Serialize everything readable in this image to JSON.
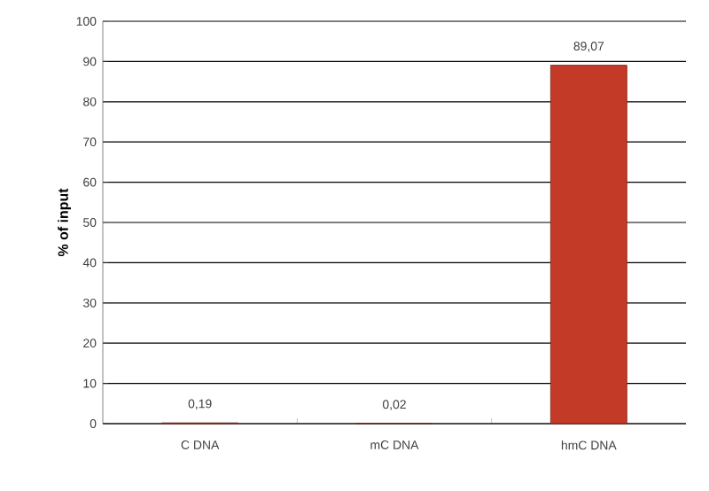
{
  "chart_data": {
    "type": "bar",
    "ylabel": "% of input",
    "categories": [
      "C DNA",
      "mC DNA",
      "hmC DNA"
    ],
    "values": [
      0.19,
      0.02,
      89.07
    ],
    "value_labels": [
      "0,19",
      "0,02",
      "89,07"
    ],
    "color": "#c33a27",
    "ylim": [
      0,
      100
    ],
    "yticks": [
      0,
      10,
      20,
      30,
      40,
      50,
      60,
      70,
      80,
      90,
      100
    ],
    "grid": "y"
  }
}
